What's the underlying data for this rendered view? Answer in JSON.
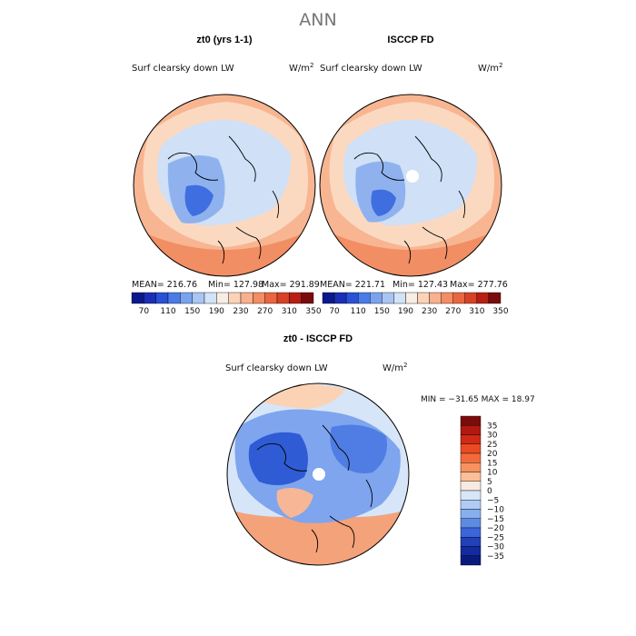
{
  "figure": {
    "title": "ANN"
  },
  "colors": {
    "deep_blue": "#0a1a8c",
    "mid_blue": "#3b6ee6",
    "light_blue": "#c8dcf7",
    "near_white": "#f6ece3",
    "light_orange": "#fbc7a4",
    "orange": "#f08a5c",
    "red": "#c8321c",
    "dark_red": "#7a0c0c"
  },
  "panels": [
    {
      "id": "model",
      "title": "zt0 (yrs 1-1)",
      "variable": "Surf clearsky down LW",
      "units": "W/m",
      "units_sup": "2",
      "stats": {
        "mean_label": "MEAN=",
        "mean": "216.76",
        "min_label": "Min=",
        "min": "127.98",
        "max_label": "Max=",
        "max": "291.89"
      }
    },
    {
      "id": "obs",
      "title": "ISCCP FD",
      "variable": "Surf clearsky down LW",
      "units": "W/m",
      "units_sup": "2",
      "stats": {
        "mean_label": "MEAN=",
        "mean": "221.71",
        "min_label": "Min=",
        "min": "127.43",
        "max_label": "Max=",
        "max": "277.76"
      }
    }
  ],
  "diff_panel": {
    "title": "zt0 - ISCCP FD",
    "variable": "Surf clearsky down LW",
    "units": "W/m",
    "units_sup": "2",
    "minmax": "MIN = −31.65 MAX =  18.97"
  },
  "colorbar_abs": {
    "labels": [
      "70",
      "110",
      "150",
      "190",
      "230",
      "270",
      "310",
      "350"
    ],
    "colors": [
      "#0a1a8c",
      "#1a2fb5",
      "#2a50d6",
      "#4a7be8",
      "#7aa3ef",
      "#a9c5f4",
      "#d2e3f8",
      "#f7ede4",
      "#fcd3b7",
      "#f9b08c",
      "#f48c64",
      "#ea6640",
      "#d84125",
      "#b81f14",
      "#7a0c0c"
    ]
  },
  "colorbar_diff": {
    "labels": [
      "35",
      "30",
      "25",
      "20",
      "15",
      "10",
      "5",
      "0",
      "−5",
      "−10",
      "−15",
      "−20",
      "−25",
      "−30",
      "−35"
    ],
    "colors": [
      "#7a0c0c",
      "#b01a10",
      "#d02a14",
      "#ea4a24",
      "#f26a3c",
      "#f7925e",
      "#fbbf99",
      "#f7ebe1",
      "#d7e6f9",
      "#b0ccf5",
      "#87aeee",
      "#5c8be6",
      "#3a66d9",
      "#2241b8",
      "#142aa0",
      "#0a1a7c"
    ]
  }
}
